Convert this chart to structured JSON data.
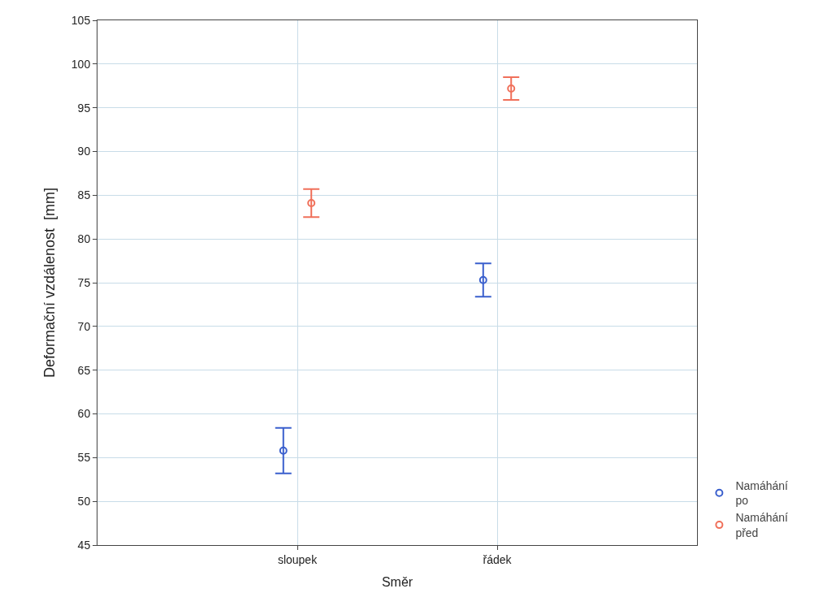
{
  "chart_data": {
    "type": "scatter",
    "xlabel": "Směr",
    "ylabel": "Deformační vzdálenost  [mm]",
    "categories": [
      "sloupek",
      "řádek"
    ],
    "series": [
      {
        "name": "Namáhání po",
        "color": "#3a5fcd",
        "values": [
          55.8,
          75.3
        ],
        "errors": [
          2.6,
          1.9
        ]
      },
      {
        "name": "Namáhání před",
        "color": "#f0705a",
        "values": [
          84.1,
          97.2
        ],
        "errors": [
          1.6,
          1.3
        ]
      }
    ],
    "ylim": [
      45,
      105
    ],
    "yticks": [
      45,
      50,
      55,
      60,
      65,
      70,
      75,
      80,
      85,
      90,
      95,
      100,
      105
    ],
    "grid": true,
    "legend": "bottom right",
    "marker": "circle"
  }
}
